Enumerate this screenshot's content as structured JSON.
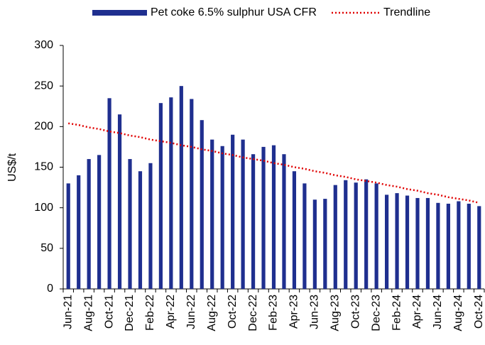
{
  "chart_data": {
    "type": "bar",
    "ylabel": "US$/t",
    "categories": [
      "Jun-21",
      null,
      "Aug-21",
      null,
      "Oct-21",
      null,
      "Dec-21",
      null,
      "Feb-22",
      null,
      "Apr-22",
      null,
      "Jun-22",
      null,
      "Aug-22",
      null,
      "Oct-22",
      null,
      "Dec-22",
      null,
      "Feb-23",
      null,
      "Apr-23",
      null,
      "Jun-23",
      null,
      "Aug-23",
      null,
      "Oct-23",
      null,
      "Dec-23",
      null,
      "Feb-24",
      null,
      "Apr-24",
      null,
      "Jun-24",
      null,
      "Aug-24",
      null,
      "Oct-24"
    ],
    "series": [
      {
        "name": "Pet coke 6.5% sulphur USA CFR",
        "color": "#1f2f8f",
        "values": [
          130,
          140,
          160,
          165,
          235,
          215,
          160,
          145,
          155,
          229,
          236,
          250,
          234,
          208,
          184,
          176,
          190,
          184,
          166,
          175,
          177,
          166,
          145,
          130,
          110,
          111,
          128,
          134,
          131,
          135,
          130,
          116,
          118,
          115,
          112,
          112,
          106,
          105,
          108,
          105,
          102
        ]
      },
      {
        "name": "Trendline",
        "color": "#e00000",
        "type": "line",
        "dotted": true,
        "values": [
          204,
          202,
          199,
          197,
          194,
          192,
          189,
          187,
          184,
          182,
          180,
          177,
          175,
          172,
          170,
          167,
          165,
          162,
          160,
          158,
          155,
          153,
          150,
          148,
          145,
          143,
          140,
          138,
          135,
          133,
          131,
          128,
          126,
          123,
          121,
          118,
          116,
          113,
          111,
          109,
          106
        ]
      }
    ],
    "ylim": [
      0,
      300
    ],
    "yticks": [
      0,
      50,
      100,
      150,
      200,
      250,
      300
    ],
    "grid": false
  }
}
